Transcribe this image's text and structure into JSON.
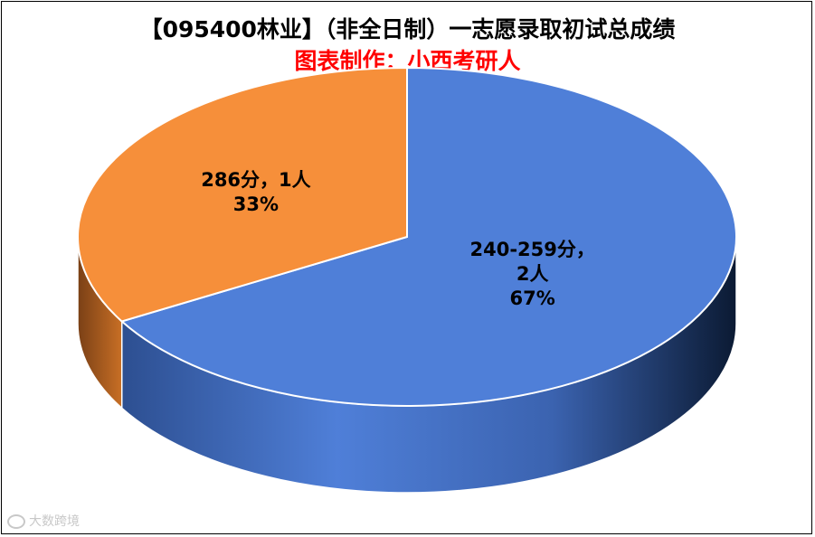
{
  "chart_data": {
    "type": "pie",
    "title": "【095400林业】（非全日制）一志愿录取初试总成绩",
    "subtitle": "图表制作：小西考研人",
    "slices": [
      {
        "label_line1": "240-259分，",
        "label_line2": "2人",
        "count": 2,
        "percent_label": "67%",
        "value": 66.67,
        "color": "#4F7FD8"
      },
      {
        "label_line1": "286分，1人",
        "label_line2": "",
        "count": 1,
        "percent_label": "33%",
        "value": 33.33,
        "color": "#F68F3A"
      }
    ],
    "style": "3d-pie"
  },
  "watermark": {
    "text": "大数跨境",
    "icon": "logo-icon"
  }
}
